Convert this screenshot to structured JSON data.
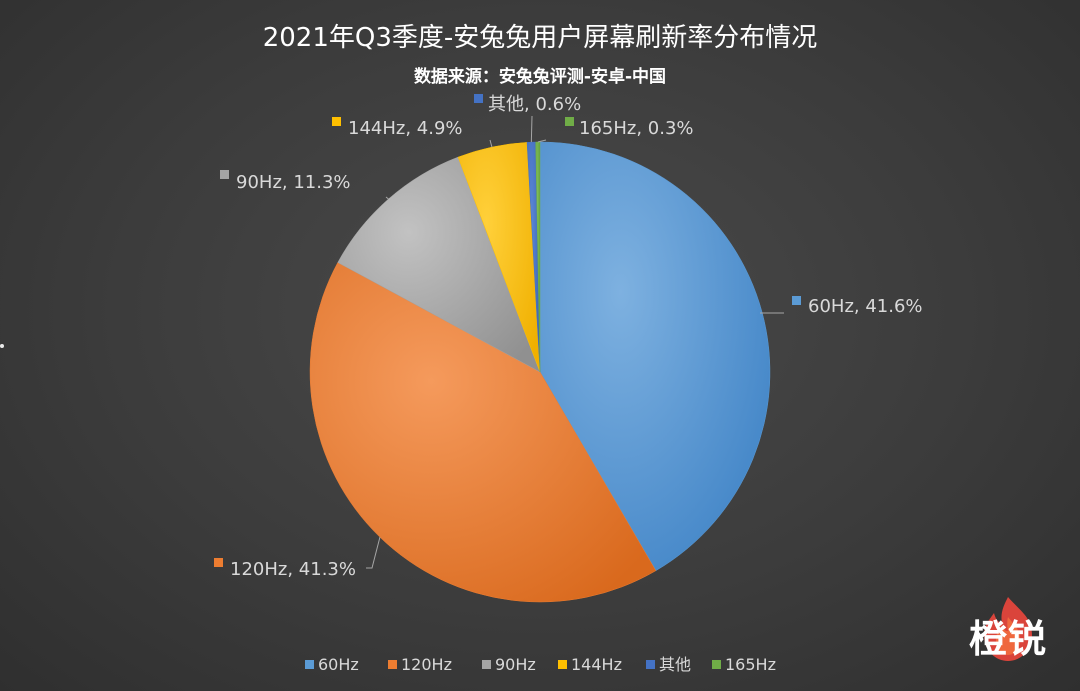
{
  "chart_data": {
    "type": "pie",
    "title": "2021年Q3季度-安兔兔用户屏幕刷新率分布情况",
    "subtitle": "数据来源：安兔兔评测-安卓-中国",
    "legend_position": "bottom",
    "slices": [
      {
        "name": "60Hz",
        "value": 41.6,
        "label": "60Hz, 41.6%",
        "color": "#5b9bd5"
      },
      {
        "name": "120Hz",
        "value": 41.3,
        "label": "120Hz, 41.3%",
        "color": "#ed7d31"
      },
      {
        "name": "90Hz",
        "value": 11.3,
        "label": "90Hz, 11.3%",
        "color": "#a5a5a5"
      },
      {
        "name": "144Hz",
        "value": 4.9,
        "label": "144Hz, 4.9%",
        "color": "#ffc000"
      },
      {
        "name": "其他",
        "value": 0.6,
        "label": "其他, 0.6%",
        "color": "#4472c4"
      },
      {
        "name": "165Hz",
        "value": 0.3,
        "label": "165Hz, 0.3%",
        "color": "#70ad47"
      }
    ]
  },
  "watermark": {
    "text": "橙锐",
    "icon": "flame-icon"
  }
}
